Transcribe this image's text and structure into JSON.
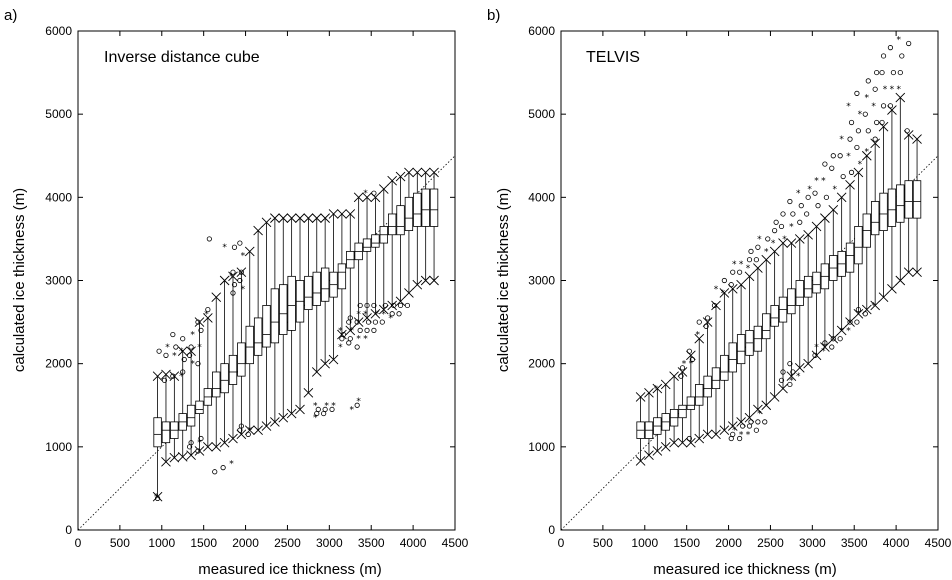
{
  "chart_data": [
    {
      "type": "box",
      "panel_label": "a)",
      "title": "Inverse distance cube",
      "xlabel": "measured ice thickness (m)",
      "ylabel": "calculated ice thickness (m)",
      "xlim": [
        0,
        4500
      ],
      "ylim": [
        0,
        6000
      ],
      "xticks": [
        0,
        500,
        1000,
        1500,
        2000,
        2500,
        3000,
        3500,
        4000,
        4500
      ],
      "yticks": [
        0,
        1000,
        2000,
        3000,
        4000,
        5000,
        6000
      ],
      "reference_line": "y = x",
      "bin_width": 100,
      "boxes": [
        {
          "x": 950,
          "min": 400,
          "q1": 1000,
          "median": 1150,
          "q3": 1350,
          "max": 1850
        },
        {
          "x": 1050,
          "min": 820,
          "q1": 1050,
          "median": 1200,
          "q3": 1300,
          "max": 1870
        },
        {
          "x": 1150,
          "min": 870,
          "q1": 1100,
          "median": 1200,
          "q3": 1300,
          "max": 1850
        },
        {
          "x": 1250,
          "min": 880,
          "q1": 1200,
          "median": 1300,
          "q3": 1400,
          "max": 2150
        },
        {
          "x": 1350,
          "min": 900,
          "q1": 1250,
          "median": 1350,
          "q3": 1500,
          "max": 2150
        },
        {
          "x": 1450,
          "min": 950,
          "q1": 1400,
          "median": 1450,
          "q3": 1550,
          "max": 2500
        },
        {
          "x": 1550,
          "min": 1000,
          "q1": 1500,
          "median": 1600,
          "q3": 1700,
          "max": 2550
        },
        {
          "x": 1650,
          "min": 1000,
          "q1": 1600,
          "median": 1700,
          "q3": 1900,
          "max": 2800
        },
        {
          "x": 1750,
          "min": 1050,
          "q1": 1650,
          "median": 1800,
          "q3": 2000,
          "max": 3000
        },
        {
          "x": 1850,
          "min": 1100,
          "q1": 1750,
          "median": 1900,
          "q3": 2100,
          "max": 3050
        },
        {
          "x": 1950,
          "min": 1150,
          "q1": 1850,
          "median": 2000,
          "q3": 2250,
          "max": 3100
        },
        {
          "x": 2050,
          "min": 1200,
          "q1": 2000,
          "median": 2200,
          "q3": 2450,
          "max": 3350
        },
        {
          "x": 2150,
          "min": 1200,
          "q1": 2100,
          "median": 2250,
          "q3": 2550,
          "max": 3600
        },
        {
          "x": 2250,
          "min": 1250,
          "q1": 2200,
          "median": 2350,
          "q3": 2700,
          "max": 3700
        },
        {
          "x": 2350,
          "min": 1300,
          "q1": 2250,
          "median": 2500,
          "q3": 2900,
          "max": 3750
        },
        {
          "x": 2450,
          "min": 1350,
          "q1": 2350,
          "median": 2600,
          "q3": 2950,
          "max": 3750
        },
        {
          "x": 2550,
          "min": 1400,
          "q1": 2400,
          "median": 2700,
          "q3": 3050,
          "max": 3750
        },
        {
          "x": 2650,
          "min": 1450,
          "q1": 2500,
          "median": 2750,
          "q3": 3000,
          "max": 3750
        },
        {
          "x": 2750,
          "min": 1650,
          "q1": 2650,
          "median": 2800,
          "q3": 3050,
          "max": 3750
        },
        {
          "x": 2850,
          "min": 1900,
          "q1": 2700,
          "median": 2850,
          "q3": 3100,
          "max": 3750
        },
        {
          "x": 2950,
          "min": 2000,
          "q1": 2750,
          "median": 2900,
          "q3": 3150,
          "max": 3750
        },
        {
          "x": 3050,
          "min": 2050,
          "q1": 2800,
          "median": 2950,
          "q3": 3100,
          "max": 3800
        },
        {
          "x": 3150,
          "min": 2350,
          "q1": 2900,
          "median": 3100,
          "q3": 3200,
          "max": 3800
        },
        {
          "x": 3250,
          "min": 2400,
          "q1": 3150,
          "median": 3250,
          "q3": 3350,
          "max": 3800
        },
        {
          "x": 3350,
          "min": 2500,
          "q1": 3250,
          "median": 3350,
          "q3": 3450,
          "max": 4000
        },
        {
          "x": 3450,
          "min": 2550,
          "q1": 3350,
          "median": 3400,
          "q3": 3500,
          "max": 4000
        },
        {
          "x": 3550,
          "min": 2600,
          "q1": 3400,
          "median": 3450,
          "q3": 3550,
          "max": 4000
        },
        {
          "x": 3650,
          "min": 2650,
          "q1": 3450,
          "median": 3550,
          "q3": 3650,
          "max": 4100
        },
        {
          "x": 3750,
          "min": 2700,
          "q1": 3550,
          "median": 3650,
          "q3": 3800,
          "max": 4200
        },
        {
          "x": 3850,
          "min": 2750,
          "q1": 3550,
          "median": 3650,
          "q3": 3900,
          "max": 4250
        },
        {
          "x": 3950,
          "min": 2850,
          "q1": 3600,
          "median": 3750,
          "q3": 4000,
          "max": 4300
        },
        {
          "x": 4050,
          "min": 2950,
          "q1": 3650,
          "median": 3800,
          "q3": 4050,
          "max": 4300
        },
        {
          "x": 4150,
          "min": 3000,
          "q1": 3650,
          "median": 3850,
          "q3": 4100,
          "max": 4300
        },
        {
          "x": 4250,
          "min": 3000,
          "q1": 3650,
          "median": 3850,
          "q3": 4100,
          "max": 4300
        }
      ],
      "outliers": [
        {
          "x": 950,
          "y": [
            400,
            380,
            2150
          ]
        },
        {
          "x": 1050,
          "y": [
            1800,
            2100,
            2200
          ]
        },
        {
          "x": 1150,
          "y": [
            1850,
            2100,
            2200,
            2350
          ]
        },
        {
          "x": 1250,
          "y": [
            1850,
            1900,
            2050,
            2150,
            2300
          ]
        },
        {
          "x": 1350,
          "y": [
            1000,
            1050,
            2000,
            2100,
            2200,
            2350
          ]
        },
        {
          "x": 1450,
          "y": [
            950,
            1050,
            1100,
            2000,
            2200,
            2400,
            2500
          ]
        },
        {
          "x": 1550,
          "y": [
            2600,
            2650,
            3500
          ]
        },
        {
          "x": 1650,
          "y": [
            700
          ]
        },
        {
          "x": 1750,
          "y": [
            750,
            3400
          ]
        },
        {
          "x": 1850,
          "y": [
            800,
            2850,
            2950,
            3050,
            3100,
            3400
          ]
        },
        {
          "x": 1950,
          "y": [
            1200,
            1250,
            2900,
            3000,
            3100,
            3300,
            3450
          ]
        },
        {
          "x": 2050,
          "y": [
            1150,
            1200
          ]
        },
        {
          "x": 2850,
          "y": [
            1350,
            1400,
            1450,
            1500
          ]
        },
        {
          "x": 2950,
          "y": [
            1400,
            1450,
            1500
          ]
        },
        {
          "x": 3050,
          "y": [
            1450,
            1500
          ]
        },
        {
          "x": 3150,
          "y": [
            2200,
            2300,
            2350,
            2400
          ]
        },
        {
          "x": 3250,
          "y": [
            2250,
            2300,
            2400,
            2500,
            2550,
            1450
          ]
        },
        {
          "x": 3350,
          "y": [
            2200,
            2300,
            2400,
            2500,
            2600,
            2700,
            1500,
            1550
          ]
        },
        {
          "x": 3450,
          "y": [
            2300,
            2400,
            2500,
            2600,
            2700
          ]
        },
        {
          "x": 3550,
          "y": [
            2400,
            2500,
            2600,
            2700
          ]
        },
        {
          "x": 3650,
          "y": [
            2500,
            2600,
            2700
          ]
        },
        {
          "x": 3750,
          "y": [
            2550,
            2600,
            2700
          ]
        },
        {
          "x": 3850,
          "y": [
            2600,
            2700
          ]
        },
        {
          "x": 3950,
          "y": [
            2700
          ]
        },
        {
          "x": 3450,
          "y": [
            4050
          ]
        },
        {
          "x": 3550,
          "y": [
            4050
          ]
        }
      ]
    },
    {
      "type": "box",
      "panel_label": "b)",
      "title": "TELVIS",
      "xlabel": "measured ice thickness (m)",
      "ylabel": "calculated ice thickness (m)",
      "xlim": [
        0,
        4500
      ],
      "ylim": [
        0,
        6000
      ],
      "xticks": [
        0,
        500,
        1000,
        1500,
        2000,
        2500,
        3000,
        3500,
        4000,
        4500
      ],
      "yticks": [
        0,
        1000,
        2000,
        3000,
        4000,
        5000,
        6000
      ],
      "reference_line": "y = x",
      "bin_width": 100,
      "boxes": [
        {
          "x": 950,
          "min": 830,
          "q1": 1100,
          "median": 1200,
          "q3": 1300,
          "max": 1600
        },
        {
          "x": 1050,
          "min": 900,
          "q1": 1100,
          "median": 1200,
          "q3": 1300,
          "max": 1650
        },
        {
          "x": 1150,
          "min": 950,
          "q1": 1150,
          "median": 1250,
          "q3": 1350,
          "max": 1700
        },
        {
          "x": 1250,
          "min": 1000,
          "q1": 1200,
          "median": 1300,
          "q3": 1400,
          "max": 1750
        },
        {
          "x": 1350,
          "min": 1050,
          "q1": 1250,
          "median": 1350,
          "q3": 1450,
          "max": 1850
        },
        {
          "x": 1450,
          "min": 1050,
          "q1": 1350,
          "median": 1450,
          "q3": 1500,
          "max": 1900
        },
        {
          "x": 1550,
          "min": 1050,
          "q1": 1450,
          "median": 1500,
          "q3": 1600,
          "max": 2100
        },
        {
          "x": 1650,
          "min": 1100,
          "q1": 1500,
          "median": 1600,
          "q3": 1750,
          "max": 2300
        },
        {
          "x": 1750,
          "min": 1150,
          "q1": 1600,
          "median": 1700,
          "q3": 1850,
          "max": 2500
        },
        {
          "x": 1850,
          "min": 1150,
          "q1": 1700,
          "median": 1800,
          "q3": 1950,
          "max": 2700
        },
        {
          "x": 1950,
          "min": 1200,
          "q1": 1800,
          "median": 1900,
          "q3": 2100,
          "max": 2850
        },
        {
          "x": 2050,
          "min": 1250,
          "q1": 1900,
          "median": 2050,
          "q3": 2250,
          "max": 2900
        },
        {
          "x": 2150,
          "min": 1300,
          "q1": 2000,
          "median": 2150,
          "q3": 2350,
          "max": 2950
        },
        {
          "x": 2250,
          "min": 1350,
          "q1": 2100,
          "median": 2250,
          "q3": 2400,
          "max": 3050
        },
        {
          "x": 2350,
          "min": 1450,
          "q1": 2150,
          "median": 2300,
          "q3": 2450,
          "max": 3150
        },
        {
          "x": 2450,
          "min": 1500,
          "q1": 2300,
          "median": 2400,
          "q3": 2600,
          "max": 3250
        },
        {
          "x": 2550,
          "min": 1600,
          "q1": 2450,
          "median": 2550,
          "q3": 2700,
          "max": 3350
        },
        {
          "x": 2650,
          "min": 1700,
          "q1": 2500,
          "median": 2650,
          "q3": 2800,
          "max": 3450
        },
        {
          "x": 2750,
          "min": 1850,
          "q1": 2600,
          "median": 2700,
          "q3": 2900,
          "max": 3450
        },
        {
          "x": 2850,
          "min": 1950,
          "q1": 2700,
          "median": 2800,
          "q3": 3000,
          "max": 3500
        },
        {
          "x": 2950,
          "min": 2000,
          "q1": 2800,
          "median": 2900,
          "q3": 3050,
          "max": 3550
        },
        {
          "x": 3050,
          "min": 2100,
          "q1": 2850,
          "median": 2950,
          "q3": 3100,
          "max": 3650
        },
        {
          "x": 3150,
          "min": 2200,
          "q1": 2900,
          "median": 3050,
          "q3": 3200,
          "max": 3750
        },
        {
          "x": 3250,
          "min": 2300,
          "q1": 3000,
          "median": 3150,
          "q3": 3300,
          "max": 3850
        },
        {
          "x": 3350,
          "min": 2400,
          "q1": 3050,
          "median": 3200,
          "q3": 3350,
          "max": 4000
        },
        {
          "x": 3450,
          "min": 2500,
          "q1": 3100,
          "median": 3300,
          "q3": 3450,
          "max": 4150
        },
        {
          "x": 3550,
          "min": 2600,
          "q1": 3200,
          "median": 3400,
          "q3": 3650,
          "max": 4300
        },
        {
          "x": 3650,
          "min": 2650,
          "q1": 3400,
          "median": 3600,
          "q3": 3800,
          "max": 4500
        },
        {
          "x": 3750,
          "min": 2700,
          "q1": 3550,
          "median": 3700,
          "q3": 3950,
          "max": 4650
        },
        {
          "x": 3850,
          "min": 2800,
          "q1": 3600,
          "median": 3800,
          "q3": 4050,
          "max": 4850
        },
        {
          "x": 3950,
          "min": 2900,
          "q1": 3650,
          "median": 3850,
          "q3": 4100,
          "max": 5050
        },
        {
          "x": 4050,
          "min": 3000,
          "q1": 3700,
          "median": 3900,
          "q3": 4150,
          "max": 5200
        },
        {
          "x": 4150,
          "min": 3100,
          "q1": 3750,
          "median": 3950,
          "q3": 4200,
          "max": 4750
        },
        {
          "x": 4250,
          "min": 3100,
          "q1": 3750,
          "median": 3950,
          "q3": 4200,
          "max": 4700
        }
      ],
      "outliers": [
        {
          "x": 1150,
          "y": [
            1700
          ]
        },
        {
          "x": 1450,
          "y": [
            1850,
            1950,
            2000
          ]
        },
        {
          "x": 1550,
          "y": [
            1100,
            2000,
            2050,
            2150
          ]
        },
        {
          "x": 1650,
          "y": [
            2350,
            2500
          ]
        },
        {
          "x": 1750,
          "y": [
            2450,
            2550
          ]
        },
        {
          "x": 1850,
          "y": [
            2700,
            2900
          ]
        },
        {
          "x": 1950,
          "y": [
            2850,
            3000
          ]
        },
        {
          "x": 2050,
          "y": [
            1100,
            1150,
            1200,
            2950,
            3100,
            3200
          ]
        },
        {
          "x": 2150,
          "y": [
            1100,
            1150,
            1250,
            3100,
            3200
          ]
        },
        {
          "x": 2250,
          "y": [
            1150,
            1250,
            1300,
            3150,
            3250,
            3350
          ]
        },
        {
          "x": 2350,
          "y": [
            1200,
            1300,
            1400,
            3250,
            3400,
            3500
          ]
        },
        {
          "x": 2450,
          "y": [
            1300,
            3350,
            3500
          ]
        },
        {
          "x": 2550,
          "y": [
            3450,
            3600,
            3700
          ]
        },
        {
          "x": 2650,
          "y": [
            1800,
            1900,
            3500,
            3650,
            3800
          ]
        },
        {
          "x": 2750,
          "y": [
            1750,
            1800,
            1900,
            2000,
            3650,
            3800,
            3950
          ]
        },
        {
          "x": 2850,
          "y": [
            1850,
            3700,
            3900,
            4050
          ]
        },
        {
          "x": 2950,
          "y": [
            3800,
            4000,
            4100
          ]
        },
        {
          "x": 3050,
          "y": [
            2100,
            2200,
            3900,
            4050,
            4200
          ]
        },
        {
          "x": 3150,
          "y": [
            2150,
            2250,
            4000,
            4200,
            4400
          ]
        },
        {
          "x": 3250,
          "y": [
            2200,
            2300,
            4100,
            4350,
            4500
          ]
        },
        {
          "x": 3350,
          "y": [
            2300,
            2400,
            4250,
            4500,
            4700
          ]
        },
        {
          "x": 3450,
          "y": [
            2400,
            2500,
            4300,
            4500,
            4700,
            4900,
            5100
          ]
        },
        {
          "x": 3550,
          "y": [
            2500,
            2650,
            4400,
            4600,
            4800,
            5000,
            5250
          ]
        },
        {
          "x": 3650,
          "y": [
            2600,
            4550,
            4800,
            5000,
            5200,
            5400
          ]
        },
        {
          "x": 3750,
          "y": [
            2700,
            4700,
            4900,
            5100,
            5300,
            5500
          ]
        },
        {
          "x": 3850,
          "y": [
            4900,
            5100,
            5300,
            5500,
            5700
          ]
        },
        {
          "x": 3950,
          "y": [
            5100,
            5300,
            5500,
            5800
          ]
        },
        {
          "x": 4050,
          "y": [
            5300,
            5500,
            5700,
            5900
          ]
        },
        {
          "x": 4150,
          "y": [
            4800,
            5850
          ]
        }
      ]
    }
  ]
}
